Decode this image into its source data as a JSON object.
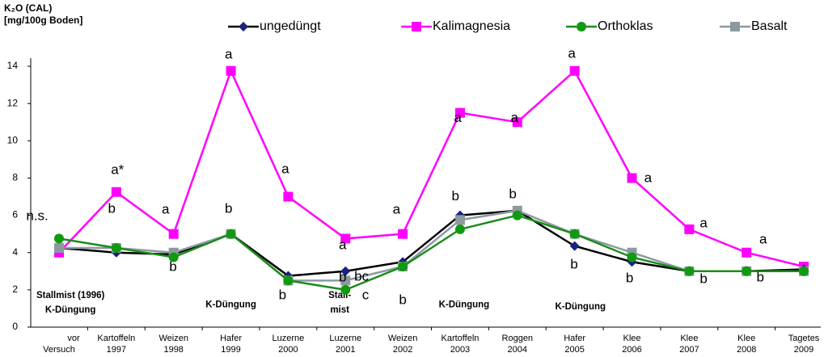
{
  "chart_data": {
    "type": "line",
    "y_label": [
      "K₂O (CAL)",
      "[mg/100g Boden]"
    ],
    "categories": [
      [
        "vor",
        "Versuch"
      ],
      [
        "Kartoffeln",
        "1997"
      ],
      [
        "Weizen",
        "1998"
      ],
      [
        "Hafer",
        "1999"
      ],
      [
        "Luzerne",
        "2000"
      ],
      [
        "Luzerne",
        "2001"
      ],
      [
        "Weizen",
        "2002"
      ],
      [
        "Kartoffeln",
        "2003"
      ],
      [
        "Roggen",
        "2004"
      ],
      [
        "Hafer",
        "2005"
      ],
      [
        "Klee",
        "2006"
      ],
      [
        "Klee",
        "2007"
      ],
      [
        "Klee",
        "2008"
      ],
      [
        "Tagetes",
        "2009"
      ]
    ],
    "series": [
      {
        "name": "ungedüngt",
        "color": "#000000",
        "marker_color": "#1a237e",
        "marker": "diamond",
        "values": [
          4.25,
          4.0,
          3.9,
          5.0,
          2.75,
          3.0,
          3.5,
          6.0,
          6.25,
          4.35,
          3.5,
          3.0,
          3.0,
          3.1
        ]
      },
      {
        "name": "Kalimagnesia",
        "color": "#ff00ff",
        "marker_color": "#ff00ff",
        "marker": "square",
        "values": [
          4.0,
          7.25,
          5.0,
          13.75,
          7.0,
          4.75,
          5.0,
          11.5,
          11.0,
          13.75,
          8.0,
          5.25,
          4.0,
          3.25
        ]
      },
      {
        "name": "Orthoklas",
        "color": "#1a8c1a",
        "marker_color": "#109a10",
        "marker": "circle",
        "values": [
          4.75,
          4.25,
          3.75,
          5.0,
          2.5,
          2.0,
          3.25,
          5.25,
          6.0,
          5.0,
          3.75,
          3.0,
          3.0,
          3.0
        ]
      },
      {
        "name": "Basalt",
        "color": "#8c9aa0",
        "marker_color": "#8c9aa0",
        "marker": "square",
        "values": [
          4.25,
          4.25,
          4.0,
          5.0,
          2.5,
          2.5,
          3.25,
          5.75,
          6.25,
          5.0,
          4.0,
          3.0,
          3.0,
          3.0
        ]
      }
    ],
    "ylim": [
      0,
      14
    ],
    "yticks": [
      0,
      2,
      4,
      6,
      8,
      10,
      12,
      14
    ],
    "grid": false,
    "annotations": [
      {
        "text": "n.s.",
        "x": -0.38,
        "y": 5.94
      },
      {
        "text": "a*",
        "x": 1.02,
        "y": 8.4
      },
      {
        "text": "b",
        "x": 0.92,
        "y": 6.33
      },
      {
        "text": "a",
        "x": 1.86,
        "y": 6.29
      },
      {
        "text": "b",
        "x": 1.99,
        "y": 3.2
      },
      {
        "text": "a",
        "x": 2.96,
        "y": 14.6
      },
      {
        "text": "b",
        "x": 2.96,
        "y": 6.33
      },
      {
        "text": "a",
        "x": 3.95,
        "y": 8.45
      },
      {
        "text": "b",
        "x": 3.9,
        "y": 1.7
      },
      {
        "text": "a",
        "x": 4.95,
        "y": 4.38
      },
      {
        "text": "b",
        "x": 4.95,
        "y": 2.64
      },
      {
        "text": "bc",
        "x": 5.28,
        "y": 2.69
      },
      {
        "text": "c",
        "x": 5.35,
        "y": 1.69
      },
      {
        "text": "a",
        "x": 5.89,
        "y": 6.29
      },
      {
        "text": "b",
        "x": 6.0,
        "y": 1.43
      },
      {
        "text": "a",
        "x": 6.96,
        "y": 11.2
      },
      {
        "text": "b",
        "x": 6.92,
        "y": 7.0
      },
      {
        "text": "a",
        "x": 7.95,
        "y": 11.2
      },
      {
        "text": "b",
        "x": 7.92,
        "y": 7.1
      },
      {
        "text": "a",
        "x": 8.95,
        "y": 14.65
      },
      {
        "text": "b",
        "x": 8.99,
        "y": 3.34
      },
      {
        "text": "a",
        "x": 10.28,
        "y": 7.98
      },
      {
        "text": "b",
        "x": 9.96,
        "y": 2.6
      },
      {
        "text": "a",
        "x": 11.25,
        "y": 5.55
      },
      {
        "text": "b",
        "x": 11.25,
        "y": 2.56
      },
      {
        "text": "a",
        "x": 12.29,
        "y": 4.68
      },
      {
        "text": "b",
        "x": 12.24,
        "y": 2.64
      }
    ],
    "notes": [
      {
        "lines": [
          "Stallmist (1996)",
          "K-Düngung"
        ],
        "x": 0.2,
        "y": 1.7
      },
      {
        "lines": [
          "K-Düngung"
        ],
        "x": 3.0,
        "y": 1.2
      },
      {
        "lines": [
          "Stall-",
          "mist"
        ],
        "x": 4.9,
        "y": 1.7
      },
      {
        "lines": [
          "K-Düngung"
        ],
        "x": 7.07,
        "y": 1.2
      },
      {
        "lines": [
          "K-Düngung"
        ],
        "x": 9.1,
        "y": 1.08
      }
    ]
  }
}
